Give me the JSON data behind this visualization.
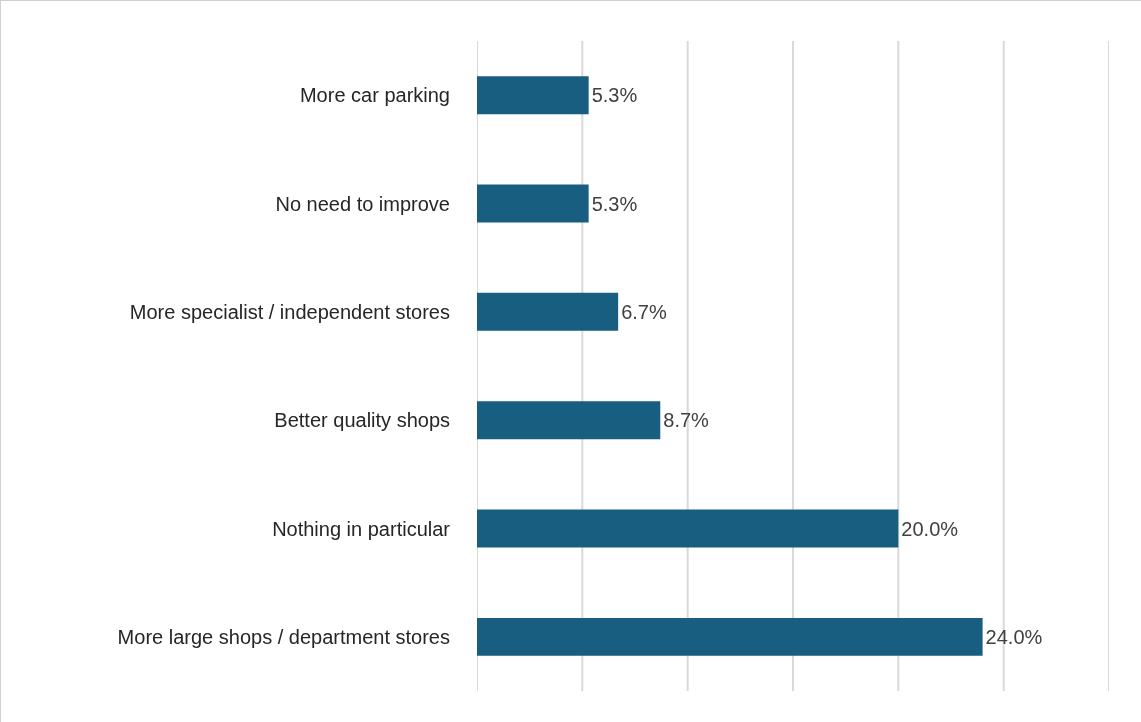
{
  "chart_data": {
    "type": "bar",
    "orientation": "horizontal",
    "categories": [
      "More car parking",
      "No need to improve",
      "More specialist / independent stores",
      "Better quality shops",
      "Nothing in particular",
      "More large shops / department stores"
    ],
    "values": [
      5.3,
      5.3,
      6.7,
      8.7,
      20.0,
      24.0
    ],
    "value_labels": [
      "5.3%",
      "5.3%",
      "6.7%",
      "8.7%",
      "20.0%",
      "24.0%"
    ],
    "color": "#175e80",
    "xlim": [
      0,
      30
    ],
    "xticks": [
      {
        "value": 0,
        "label": null
      },
      {
        "value": 5,
        "label": null
      },
      {
        "value": 10,
        "label": null
      },
      {
        "value": 15,
        "label": null
      },
      {
        "value": 20,
        "label": null
      },
      {
        "value": 25,
        "label": null
      },
      {
        "value": 30,
        "label": null
      }
    ],
    "grid": "x",
    "tick_labels": "y",
    "legend": false
  }
}
